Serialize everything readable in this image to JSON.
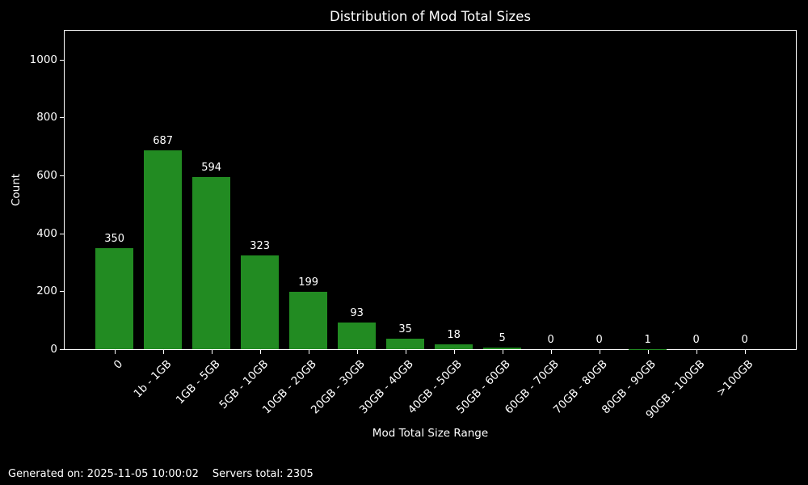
{
  "chart_data": {
    "type": "bar",
    "title": "Distribution of Mod Total Sizes",
    "xlabel": "Mod Total Size Range",
    "ylabel": "Count",
    "categories": [
      "0",
      "1b - 1GB",
      "1GB - 5GB",
      "5GB - 10GB",
      "10GB - 20GB",
      "20GB - 30GB",
      "30GB - 40GB",
      "40GB - 50GB",
      "50GB - 60GB",
      "60GB - 70GB",
      "70GB - 80GB",
      "80GB - 90GB",
      "90GB - 100GB",
      ">100GB"
    ],
    "values": [
      350,
      687,
      594,
      323,
      199,
      93,
      35,
      18,
      5,
      0,
      0,
      1,
      0,
      0
    ],
    "yticks": [
      0,
      200,
      400,
      600,
      800,
      1000
    ],
    "ylim": [
      0,
      1100
    ],
    "grid": false,
    "legend": null,
    "bar_color": "#228b22",
    "background_color": "#000000",
    "text_color": "#ffffff",
    "axis_color": "#ffffff"
  },
  "footer": {
    "generated": "Generated on: 2025-11-05 10:00:02",
    "servers_total": "Servers total: 2305"
  }
}
